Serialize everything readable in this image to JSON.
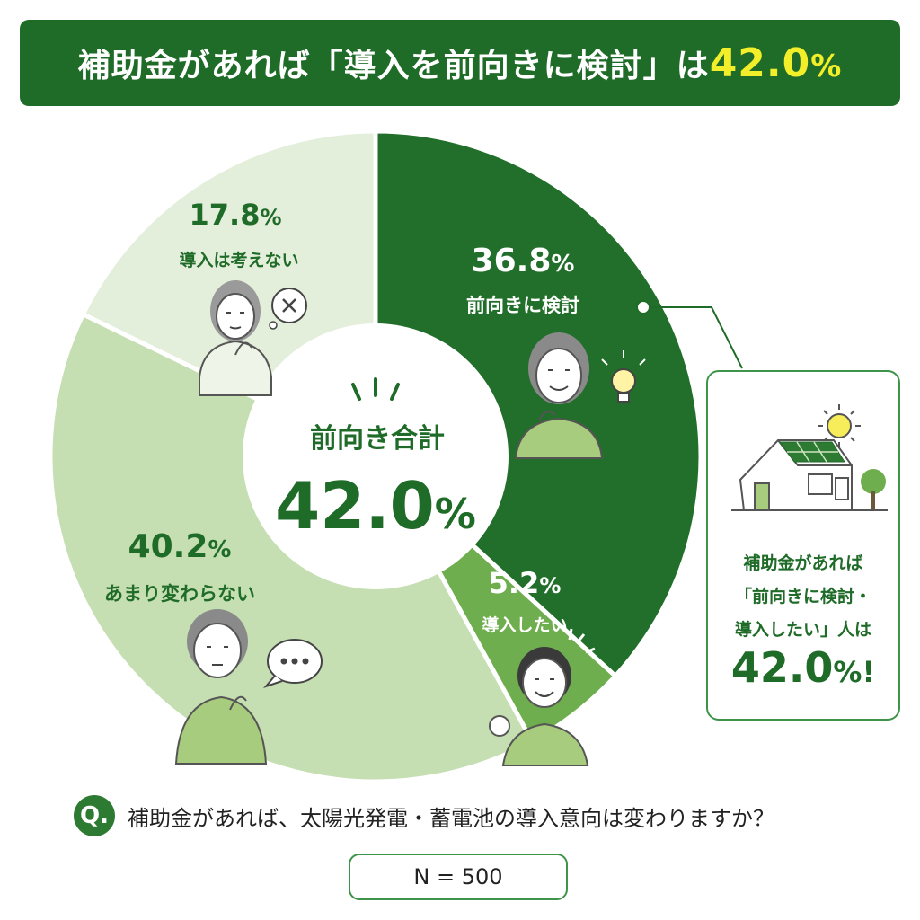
{
  "header": {
    "title_prefix": "補助金があれば「導入を前向きに検討」は",
    "title_number": "42.0",
    "title_unit": "%"
  },
  "chart_data": {
    "type": "pie",
    "style": "donut",
    "slices": [
      {
        "label": "前向きに検討",
        "value": 36.8,
        "display": "36.8",
        "unit": "%",
        "color": "#226e2b"
      },
      {
        "label": "導入したい",
        "value": 5.2,
        "display": "5.2",
        "unit": "%",
        "color": "#6fae4f"
      },
      {
        "label": "あまり変わらない",
        "value": 40.2,
        "display": "40.2",
        "unit": "%",
        "color": "#c5deb2"
      },
      {
        "label": "導入は考えない",
        "value": 17.8,
        "display": "17.8",
        "unit": "%",
        "color": "#e3eedb"
      }
    ],
    "center_label": "前向き合計",
    "center_value": "42.0",
    "center_unit": "%"
  },
  "callout": {
    "lines": [
      "補助金があれば",
      "「前向きに検討・",
      "導入したい」人は"
    ],
    "value": "42.0",
    "unit": "%!"
  },
  "question": {
    "icon_label": "Q.",
    "text": "補助金があれば、太陽光発電・蓄電池の導入意向は変わりますか？"
  },
  "sample": {
    "label": "N = 500"
  },
  "icons": {
    "x-bubble": "close-icon",
    "bulb": "light-bulb-icon",
    "dots-bubble": "thinking-bubble-icon",
    "house": "solar-house-icon",
    "sun": "sun-icon"
  }
}
